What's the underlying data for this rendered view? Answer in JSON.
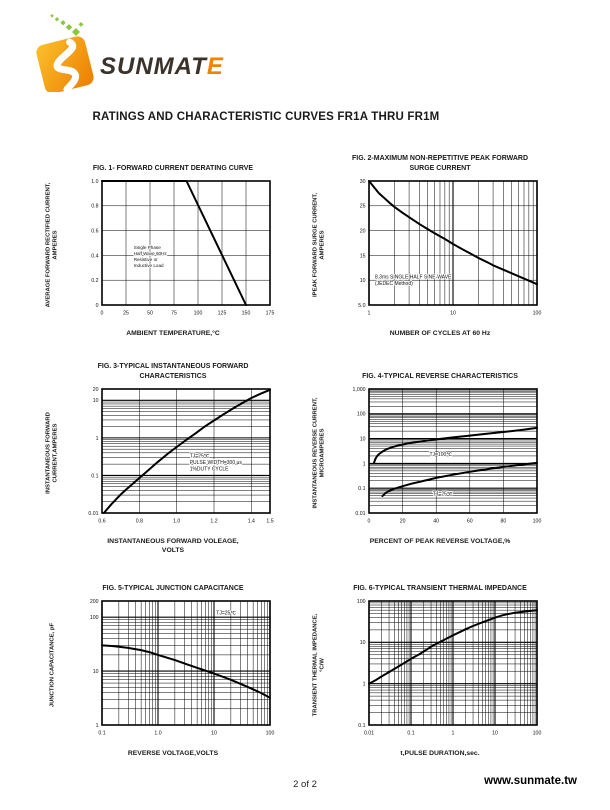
{
  "page": {
    "title": "RATINGS AND CHARACTERISTIC CURVES FR1A THRU FR1M",
    "footer": {
      "page_number": "2 of 2",
      "website": "www.sunmate.tw"
    }
  },
  "logo": {
    "brand_main": "SUNMAT",
    "brand_accent": "E",
    "mark_gradient_start": "#FBC02D",
    "mark_gradient_end": "#ED7D00",
    "dot_color": "#8CC63F",
    "text_color": "#3B332B",
    "accent_color": "#F08300"
  },
  "chart_data": [
    {
      "id": "fig1",
      "type": "line",
      "title": "FIG. 1- FORWARD CURRENT DERATING CURVE",
      "ylabel": "AVERAGE FORWARD RECTIFIED CURRENT,\nAMPERES",
      "xlabel": "AMBIENT TEMPERATURE,°C",
      "x": {
        "scale": "linear",
        "min": 0,
        "max": 175,
        "ticks": [
          {
            "v": 0,
            "l": "0"
          },
          {
            "v": 25,
            "l": "25"
          },
          {
            "v": 50,
            "l": "50"
          },
          {
            "v": 75,
            "l": "75"
          },
          {
            "v": 100,
            "l": "100"
          },
          {
            "v": 125,
            "l": "125"
          },
          {
            "v": 150,
            "l": "150"
          },
          {
            "v": 175,
            "l": "175"
          }
        ]
      },
      "y": {
        "scale": "linear",
        "min": 0,
        "max": 1,
        "ticks": [
          {
            "v": 0,
            "l": "0"
          },
          {
            "v": 0.2,
            "l": "0.2"
          },
          {
            "v": 0.4,
            "l": "0.4"
          },
          {
            "v": 0.6,
            "l": "0.6"
          },
          {
            "v": 0.8,
            "l": "0.8"
          },
          {
            "v": 1,
            "l": "1.0"
          }
        ]
      },
      "series": [
        {
          "name": "derating-curve",
          "points": [
            [
              0,
              1
            ],
            [
              88,
              1
            ],
            [
              150,
              0
            ]
          ]
        }
      ],
      "annotations": [
        {
          "x": 33,
          "y": 0.45,
          "size": 4.6,
          "lines": [
            "Single Phase",
            "Half Wave 60Hz",
            "Resistive or",
            "Inductive Load"
          ]
        }
      ]
    },
    {
      "id": "fig2",
      "type": "line",
      "title": "FIG. 2-MAXIMUM NON-REPETITIVE PEAK FORWARD\nSURGE CURRENT",
      "ylabel": "IPEAK  FORWARD SURGE CURRENT,\nAMPERES",
      "xlabel": "NUMBER OF CYCLES AT 60 Hz",
      "x": {
        "scale": "log",
        "min": 1,
        "max": 100,
        "ticks": [
          {
            "v": 1,
            "l": "1"
          },
          {
            "v": 10,
            "l": "10"
          },
          {
            "v": 100,
            "l": "100"
          }
        ]
      },
      "y": {
        "scale": "linear",
        "min": 5,
        "max": 30,
        "ticks": [
          {
            "v": 5,
            "l": "5.0"
          },
          {
            "v": 10,
            "l": "10"
          },
          {
            "v": 15,
            "l": "15"
          },
          {
            "v": 20,
            "l": "20"
          },
          {
            "v": 25,
            "l": "25"
          },
          {
            "v": 30,
            "l": "30"
          }
        ]
      },
      "series": [
        {
          "name": "surge-current",
          "points": [
            [
              1,
              30
            ],
            [
              1.3,
              27.6
            ],
            [
              1.7,
              25.8
            ],
            [
              2,
              24.8
            ],
            [
              2.5,
              23.6
            ],
            [
              3,
              22.7
            ],
            [
              4,
              21.3
            ],
            [
              5,
              20.3
            ],
            [
              6,
              19.5
            ],
            [
              8,
              18.3
            ],
            [
              10,
              17.3
            ],
            [
              13,
              16.2
            ],
            [
              16,
              15.4
            ],
            [
              20,
              14.5
            ],
            [
              25,
              13.7
            ],
            [
              30,
              13
            ],
            [
              40,
              12.1
            ],
            [
              50,
              11.4
            ],
            [
              60,
              10.8
            ],
            [
              80,
              9.9
            ],
            [
              100,
              9.2
            ]
          ]
        }
      ],
      "annotations": [
        {
          "x": 1.18,
          "y": 10.3,
          "size": 5,
          "lines": [
            "8.3ms SINGLE HALF SINE-WAVE",
            "(JEDEC Method)"
          ]
        }
      ]
    },
    {
      "id": "fig3",
      "type": "line",
      "title": "FIG. 3-TYPICAL INSTANTANEOUS FORWARD\nCHARACTERISTICS",
      "ylabel": "INSTANTANEOUS FORWARD\nCURRENT,AMPERES",
      "xlabel": "INSTANTANEOUS FORWARD VOLEAGE,\nVOLTS",
      "x": {
        "scale": "linear",
        "min": 0.6,
        "max": 1.5,
        "ticks": [
          {
            "v": 0.6,
            "l": "0.6"
          },
          {
            "v": 0.8,
            "l": "0.8"
          },
          {
            "v": 1.0,
            "l": "1.0"
          },
          {
            "v": 1.2,
            "l": "1.2"
          },
          {
            "v": 1.4,
            "l": "1.4"
          },
          {
            "v": 1.5,
            "l": "1.5"
          }
        ]
      },
      "y": {
        "scale": "log",
        "min": 0.01,
        "max": 20,
        "ticks": [
          {
            "v": 0.01,
            "l": "0.01"
          },
          {
            "v": 0.1,
            "l": "0.1"
          },
          {
            "v": 1,
            "l": "1"
          },
          {
            "v": 10,
            "l": "10"
          },
          {
            "v": 20,
            "l": "20"
          }
        ]
      },
      "series": [
        {
          "name": "forward-characteristic",
          "points": [
            [
              0.61,
              0.01
            ],
            [
              0.65,
              0.017
            ],
            [
              0.7,
              0.031
            ],
            [
              0.75,
              0.052
            ],
            [
              0.8,
              0.085
            ],
            [
              0.85,
              0.14
            ],
            [
              0.9,
              0.23
            ],
            [
              0.95,
              0.37
            ],
            [
              1,
              0.57
            ],
            [
              1.05,
              0.87
            ],
            [
              1.1,
              1.3
            ],
            [
              1.15,
              2
            ],
            [
              1.2,
              2.9
            ],
            [
              1.25,
              4.2
            ],
            [
              1.3,
              6
            ],
            [
              1.35,
              8.4
            ],
            [
              1.4,
              11.5
            ],
            [
              1.45,
              15
            ],
            [
              1.5,
              19
            ]
          ]
        }
      ],
      "annotations": [
        {
          "x": 1.07,
          "y": 0.3,
          "size": 5,
          "lines": [
            "TJ=25℃",
            "PULSE WIDTH=300 μs",
            "1%DUTY CYCLE"
          ]
        }
      ]
    },
    {
      "id": "fig4",
      "type": "line",
      "title": "FIG. 4-TYPICAL REVERSE CHARACTERISTICS",
      "ylabel": "INSTANTANEOUS REVERSE CURRENT,\nMICROAMPERES",
      "xlabel": "PERCENT OF PEAK REVERSE VOLTAGE,%",
      "x": {
        "scale": "linear",
        "min": 0,
        "max": 100,
        "ticks": [
          {
            "v": 0,
            "l": "0"
          },
          {
            "v": 20,
            "l": "20"
          },
          {
            "v": 40,
            "l": "40"
          },
          {
            "v": 60,
            "l": "60"
          },
          {
            "v": 80,
            "l": "80"
          },
          {
            "v": 100,
            "l": "100"
          }
        ]
      },
      "y": {
        "scale": "log",
        "min": 0.01,
        "max": 1000,
        "ticks": [
          {
            "v": 0.01,
            "l": "0.01"
          },
          {
            "v": 0.1,
            "l": "0.1"
          },
          {
            "v": 1,
            "l": "1"
          },
          {
            "v": 10,
            "l": "10"
          },
          {
            "v": 100,
            "l": "100"
          },
          {
            "v": 1000,
            "l": "1,000"
          }
        ]
      },
      "series": [
        {
          "name": "TJ=100℃",
          "points": [
            [
              3,
              1.05
            ],
            [
              3.5,
              1.35
            ],
            [
              4,
              1.6
            ],
            [
              5,
              2.05
            ],
            [
              6,
              2.4
            ],
            [
              8,
              3
            ],
            [
              10,
              3.6
            ],
            [
              13,
              4.3
            ],
            [
              16,
              5
            ],
            [
              20,
              5.8
            ],
            [
              25,
              6.7
            ],
            [
              30,
              7.6
            ],
            [
              40,
              9.3
            ],
            [
              50,
              11.2
            ],
            [
              60,
              13.2
            ],
            [
              70,
              15.6
            ],
            [
              80,
              18.5
            ],
            [
              90,
              22
            ],
            [
              100,
              27
            ]
          ]
        },
        {
          "name": "TJ=25℃",
          "points": [
            [
              8,
              0.048
            ],
            [
              9,
              0.056
            ],
            [
              10,
              0.065
            ],
            [
              12,
              0.078
            ],
            [
              15,
              0.095
            ],
            [
              20,
              0.12
            ],
            [
              25,
              0.15
            ],
            [
              30,
              0.18
            ],
            [
              40,
              0.26
            ],
            [
              50,
              0.35
            ],
            [
              60,
              0.46
            ],
            [
              70,
              0.58
            ],
            [
              80,
              0.72
            ],
            [
              90,
              0.88
            ],
            [
              100,
              1.05
            ]
          ]
        }
      ],
      "annotations": [
        {
          "x": 36,
          "y": 2.0,
          "size": 5,
          "lines": [
            "TJ=100℃"
          ]
        },
        {
          "x": 38,
          "y": 0.05,
          "size": 5,
          "lines": [
            "TJ=25℃"
          ]
        }
      ]
    },
    {
      "id": "fig5",
      "type": "line",
      "title": "FIG. 5-TYPICAL JUNCTION CAPACITANCE",
      "ylabel": "JUNCTION CAPACITANCE, pF",
      "xlabel": "REVERSE VOLTAGE,VOLTS",
      "x": {
        "scale": "log",
        "min": 0.1,
        "max": 100,
        "ticks": [
          {
            "v": 0.1,
            "l": "0.1"
          },
          {
            "v": 1,
            "l": "1.0"
          },
          {
            "v": 10,
            "l": "10"
          },
          {
            "v": 100,
            "l": "100"
          }
        ]
      },
      "y": {
        "scale": "log",
        "min": 1,
        "max": 200,
        "ticks": [
          {
            "v": 1,
            "l": "1"
          },
          {
            "v": 10,
            "l": "10"
          },
          {
            "v": 100,
            "l": "100"
          },
          {
            "v": 200,
            "l": "200"
          }
        ]
      },
      "series": [
        {
          "name": "junction-capacitance",
          "points": [
            [
              0.1,
              30
            ],
            [
              0.15,
              29.2
            ],
            [
              0.2,
              28.4
            ],
            [
              0.3,
              26.8
            ],
            [
              0.5,
              24.5
            ],
            [
              0.7,
              22.5
            ],
            [
              1,
              20
            ],
            [
              1.5,
              17.6
            ],
            [
              2,
              16
            ],
            [
              3,
              13.8
            ],
            [
              5,
              11.5
            ],
            [
              7,
              10.2
            ],
            [
              10,
              9
            ],
            [
              15,
              7.7
            ],
            [
              20,
              6.9
            ],
            [
              30,
              5.8
            ],
            [
              50,
              4.6
            ],
            [
              70,
              3.9
            ],
            [
              100,
              3.2
            ]
          ]
        }
      ],
      "annotations": [
        {
          "x": 11,
          "y": 112,
          "size": 5,
          "lines": [
            "TJ=25℃"
          ]
        }
      ]
    },
    {
      "id": "fig6",
      "type": "line",
      "title": "FIG. 6-TYPICAL TRANSIENT THERMAL IMPEDANCE",
      "ylabel": "TRANSIENT THERMAL IMPEDANCE,\n°C/W",
      "xlabel": "t,PULSE DURATION,sec.",
      "x": {
        "scale": "log",
        "min": 0.01,
        "max": 100,
        "ticks": [
          {
            "v": 0.01,
            "l": "0.01"
          },
          {
            "v": 0.1,
            "l": "0.1"
          },
          {
            "v": 1,
            "l": "1"
          },
          {
            "v": 10,
            "l": "10"
          },
          {
            "v": 100,
            "l": "100"
          }
        ]
      },
      "y": {
        "scale": "log",
        "min": 0.1,
        "max": 100,
        "ticks": [
          {
            "v": 0.1,
            "l": "0.1"
          },
          {
            "v": 1,
            "l": "1"
          },
          {
            "v": 10,
            "l": "10"
          },
          {
            "v": 100,
            "l": "100"
          }
        ]
      },
      "series": [
        {
          "name": "thermal-impedance",
          "points": [
            [
              0.01,
              1
            ],
            [
              0.015,
              1.25
            ],
            [
              0.02,
              1.5
            ],
            [
              0.03,
              1.9
            ],
            [
              0.05,
              2.6
            ],
            [
              0.07,
              3.2
            ],
            [
              0.1,
              4
            ],
            [
              0.15,
              5
            ],
            [
              0.2,
              6
            ],
            [
              0.3,
              7.8
            ],
            [
              0.5,
              10.3
            ],
            [
              0.7,
              12.3
            ],
            [
              1,
              14.8
            ],
            [
              1.5,
              18
            ],
            [
              2,
              20.8
            ],
            [
              3,
              24.8
            ],
            [
              5,
              30.5
            ],
            [
              7,
              34.5
            ],
            [
              10,
              39.5
            ],
            [
              15,
              45
            ],
            [
              20,
              48
            ],
            [
              30,
              52
            ],
            [
              50,
              55.5
            ],
            [
              70,
              57.5
            ],
            [
              100,
              59.5
            ]
          ]
        }
      ],
      "annotations": []
    }
  ]
}
